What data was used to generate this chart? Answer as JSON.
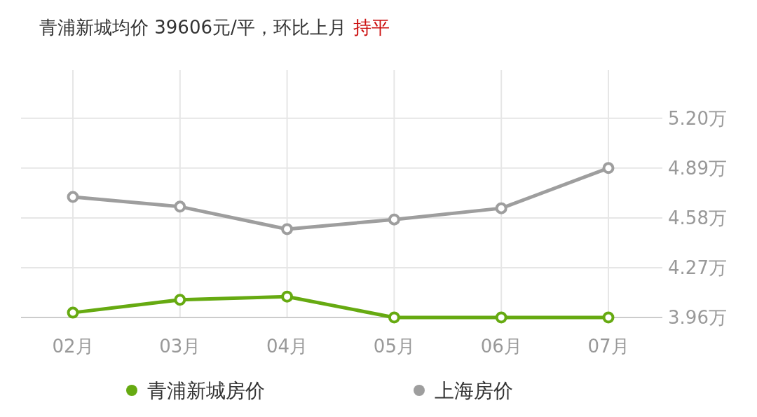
{
  "chart_data": {
    "type": "line",
    "title": "青浦新城均价 39606元/平，环比上月",
    "annotations": [
      "持平"
    ],
    "categories": [
      "02月",
      "03月",
      "04月",
      "05月",
      "06月",
      "07月"
    ],
    "series": [
      {
        "name": "青浦新城房价",
        "color": "#66aa11",
        "values": [
          3.99,
          4.07,
          4.09,
          3.96,
          3.96,
          3.96
        ]
      },
      {
        "name": "上海房价",
        "color": "#9e9e9e",
        "values": [
          4.71,
          4.65,
          4.51,
          4.57,
          4.64,
          4.89
        ]
      }
    ],
    "ylim": [
      3.96,
      5.5
    ],
    "yticks": [
      {
        "value": 3.96,
        "label": "3.96万"
      },
      {
        "value": 4.27,
        "label": "4.27万"
      },
      {
        "value": 4.58,
        "label": "4.58万"
      },
      {
        "value": 4.89,
        "label": "4.89万"
      },
      {
        "value": 5.2,
        "label": "5.20万"
      }
    ],
    "grid": true,
    "legend": "bottom",
    "marker": "circle",
    "line_style": "solid"
  }
}
